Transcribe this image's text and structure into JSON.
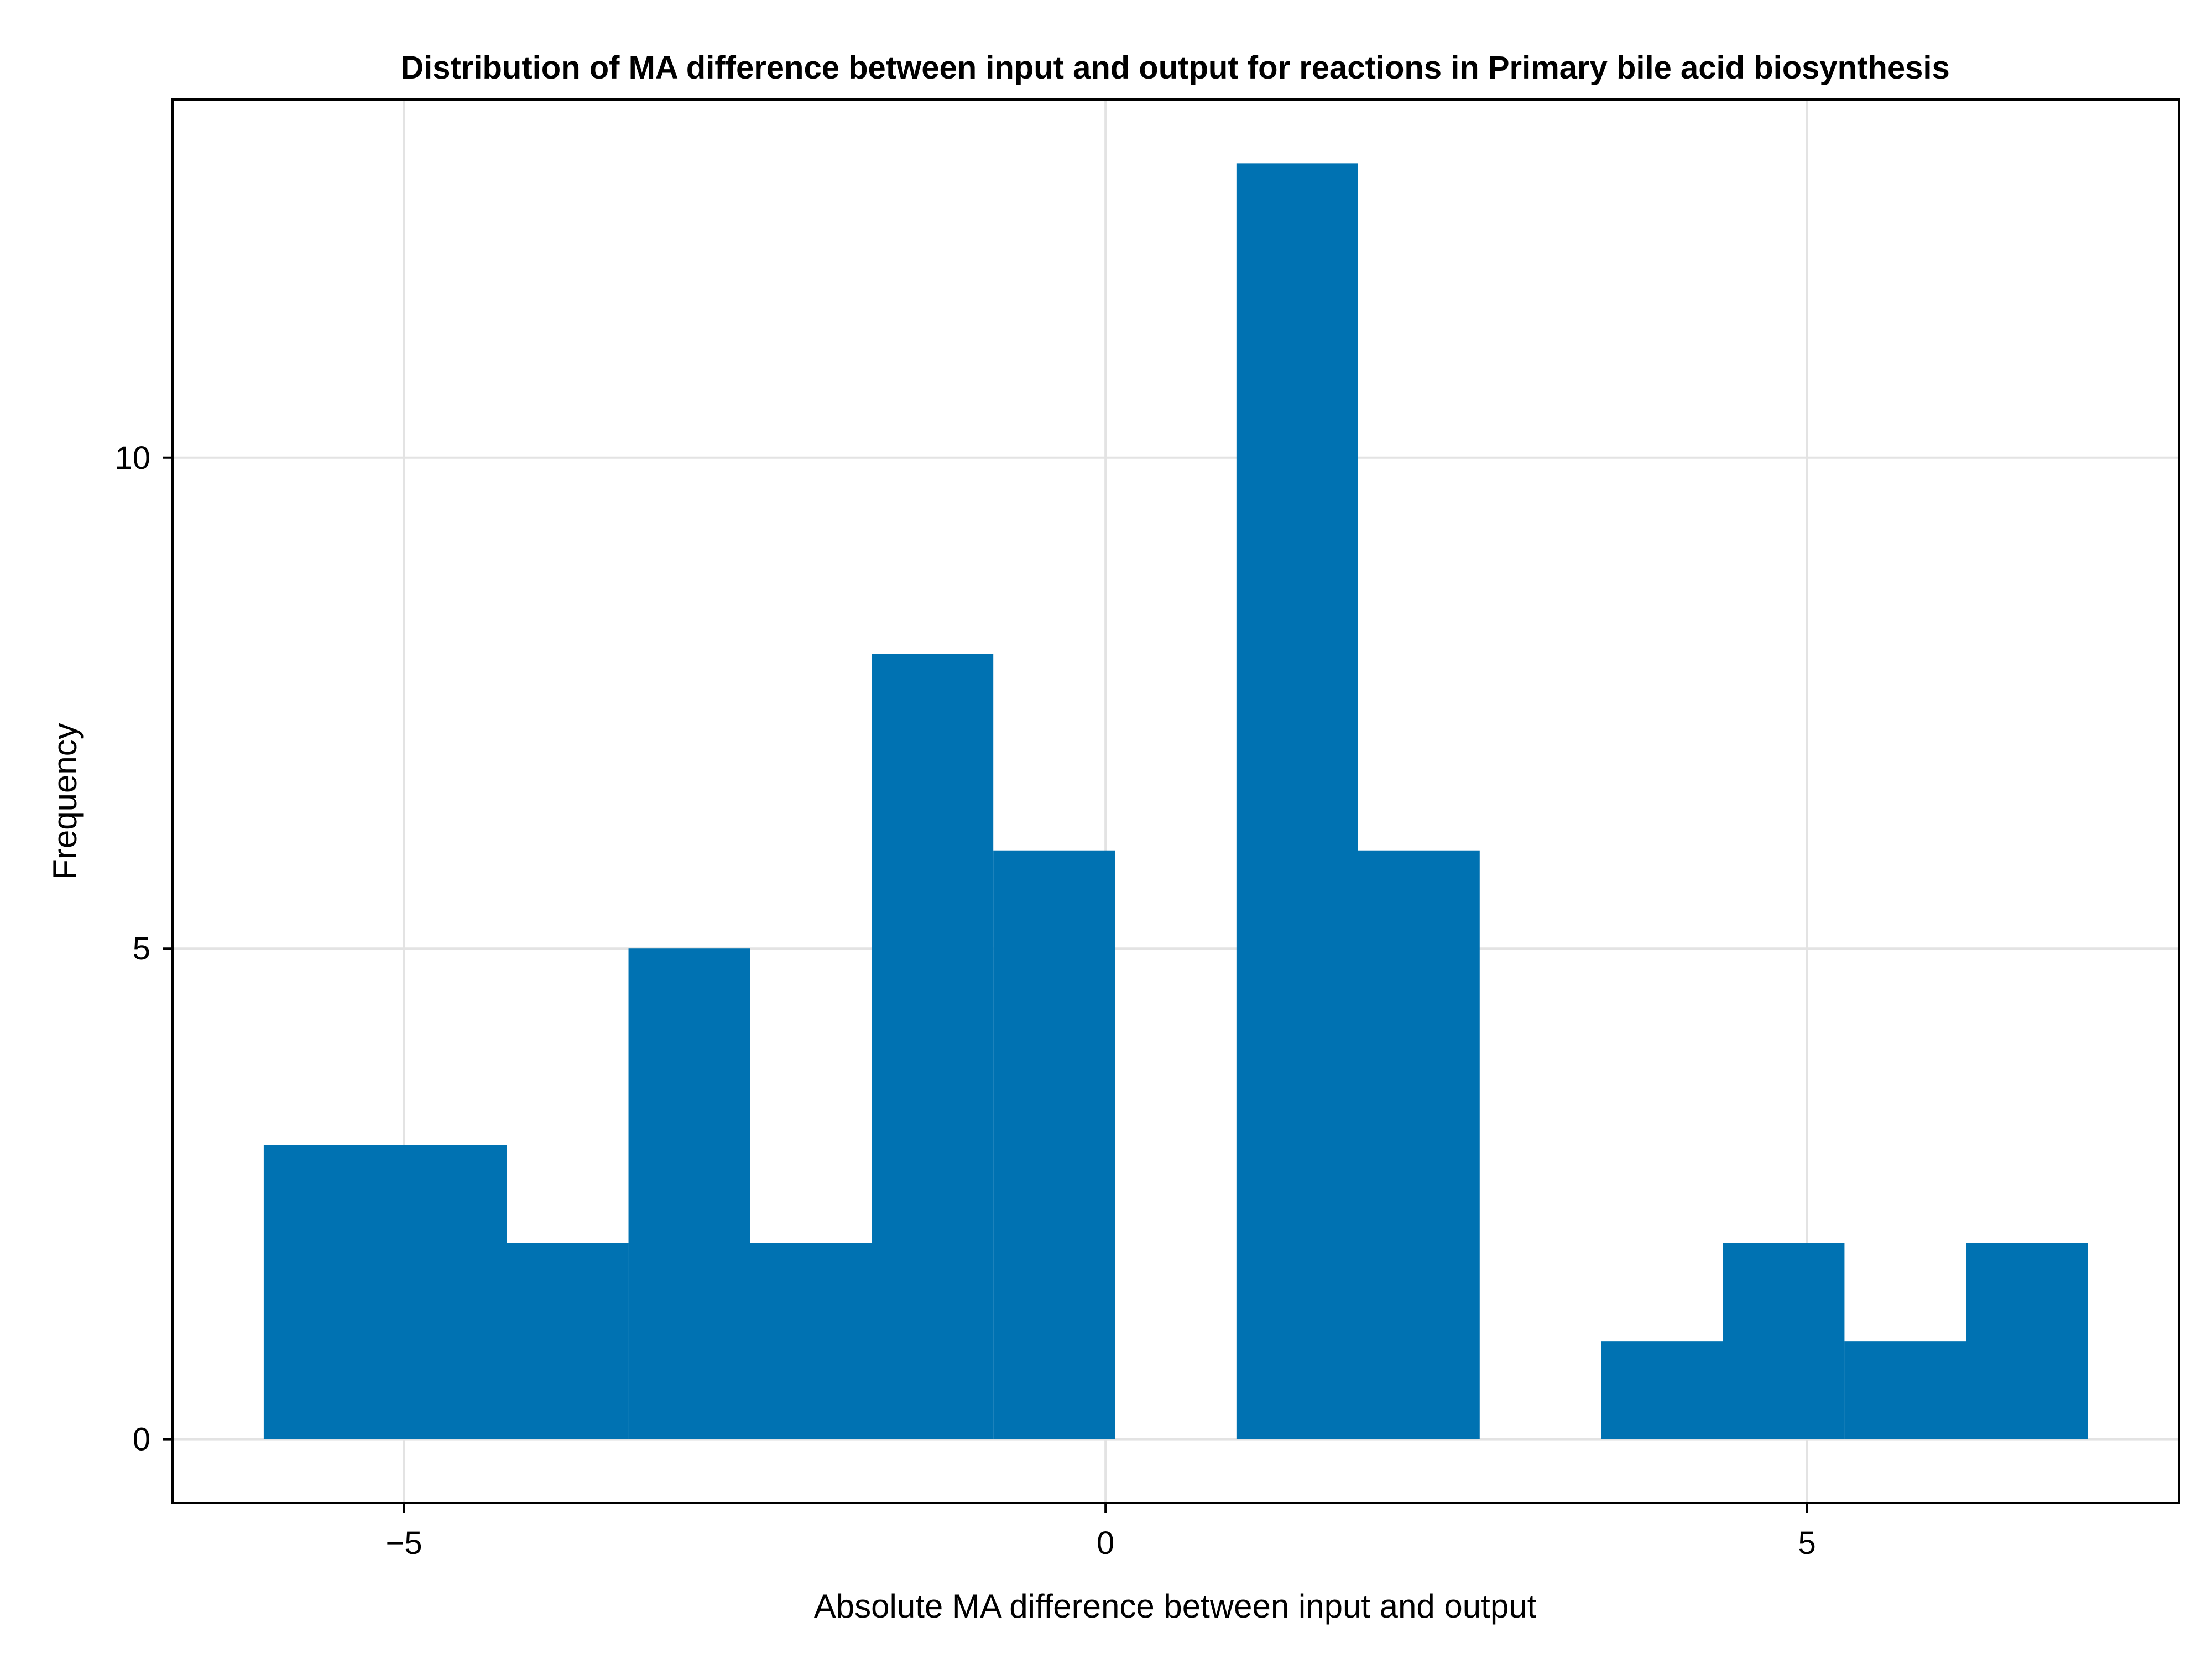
{
  "chart_data": {
    "type": "bar",
    "title": "Distribution of MA difference between input and output for reactions in Primary bile acid biosynthesis",
    "xlabel": "Absolute MA difference between input and output",
    "ylabel": "Frequency",
    "xlim": [
      -6.65,
      7.65
    ],
    "ylim": [
      -0.65,
      13.65
    ],
    "xticks": [
      -5,
      0,
      5
    ],
    "xtick_labels": [
      "−5",
      "0",
      "5"
    ],
    "yticks": [
      0,
      5,
      10
    ],
    "ytick_labels": [
      "0",
      "5",
      "10"
    ],
    "grid": true,
    "bar_color": "#0072b2",
    "bins": [
      {
        "x0": -6.0,
        "x1": -5.133,
        "value": 3
      },
      {
        "x0": -5.133,
        "x1": -4.267,
        "value": 3
      },
      {
        "x0": -4.267,
        "x1": -3.4,
        "value": 2
      },
      {
        "x0": -3.4,
        "x1": -2.533,
        "value": 5
      },
      {
        "x0": -2.533,
        "x1": -1.667,
        "value": 2
      },
      {
        "x0": -1.667,
        "x1": -0.8,
        "value": 8
      },
      {
        "x0": -0.8,
        "x1": 0.067,
        "value": 6
      },
      {
        "x0": 0.067,
        "x1": 0.933,
        "value": 0
      },
      {
        "x0": 0.933,
        "x1": 1.8,
        "value": 13
      },
      {
        "x0": 1.8,
        "x1": 2.667,
        "value": 6
      },
      {
        "x0": 2.667,
        "x1": 3.533,
        "value": 0
      },
      {
        "x0": 3.533,
        "x1": 4.4,
        "value": 1
      },
      {
        "x0": 4.4,
        "x1": 5.267,
        "value": 2
      },
      {
        "x0": 5.267,
        "x1": 6.133,
        "value": 1
      },
      {
        "x0": 6.133,
        "x1": 7.0,
        "value": 2
      }
    ]
  }
}
